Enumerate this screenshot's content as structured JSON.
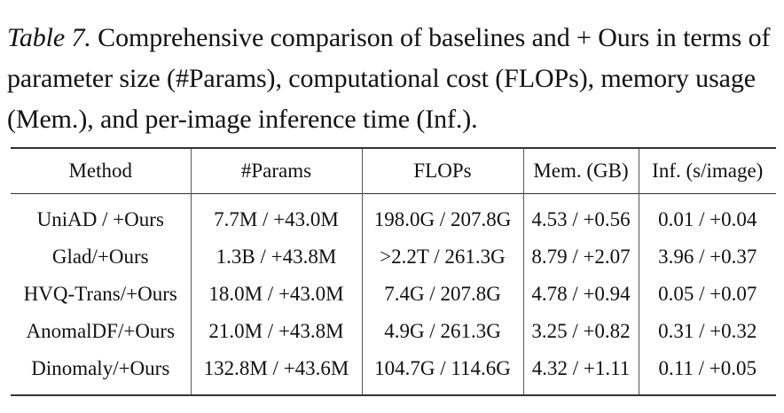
{
  "caption": {
    "label": "Table 7.",
    "text": " Comprehensive comparison of baselines and + Ours in terms of parameter size (#Params), computational cost (FLOPs), memory usage (Mem.), and per-image inference time (Inf.)."
  },
  "table": {
    "headers": [
      "Method",
      "#Params",
      "FLOPs",
      "Mem. (GB)",
      "Inf. (s/image)"
    ],
    "rows": [
      [
        "UniAD / +Ours",
        "7.7M / +43.0M",
        "198.0G / 207.8G",
        "4.53 / +0.56",
        "0.01 / +0.04"
      ],
      [
        "Glad/+Ours",
        "1.3B / +43.8M",
        ">2.2T / 261.3G",
        "8.79 / +2.07",
        "3.96 / +0.37"
      ],
      [
        "HVQ-Trans/+Ours",
        "18.0M / +43.0M",
        "7.4G / 207.8G",
        "4.78 / +0.94",
        "0.05 / +0.07"
      ],
      [
        "AnomalDF/+Ours",
        "21.0M / +43.8M",
        "4.9G / 261.3G",
        "3.25 / +0.82",
        "0.31 / +0.32"
      ],
      [
        "Dinomaly/+Ours",
        "132.8M / +43.6M",
        "104.7G / 114.6G",
        "4.32 / +1.11",
        "0.11 / +0.05"
      ]
    ]
  }
}
